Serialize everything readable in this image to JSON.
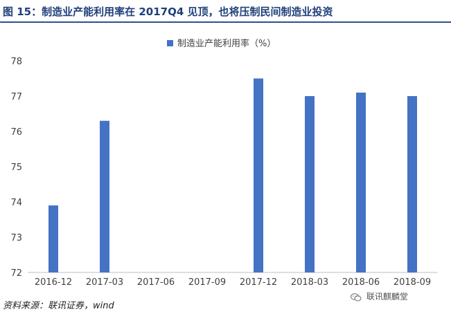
{
  "figure": {
    "title": "图 15：制造业产能利用率在 2017Q4 见顶，也将压制民间制造业投资",
    "source": "资料来源：联讯证券，wind",
    "watermark": "联讯麒麟堂",
    "watermark_icon": "wechat-icon"
  },
  "chart_data": {
    "type": "bar",
    "title": "",
    "xlabel": "",
    "ylabel": "",
    "categories": [
      "2016-12",
      "2017-03",
      "2017-06",
      "2017-09",
      "2017-12",
      "2018-03",
      "2018-06",
      "2018-09"
    ],
    "series": [
      {
        "name": "制造业产能利用率（%）",
        "values": [
          73.9,
          76.3,
          null,
          null,
          77.5,
          77.0,
          77.1,
          77.0
        ],
        "color": "#4472c4"
      }
    ],
    "ylim": [
      72,
      78
    ],
    "yticks": [
      72,
      73,
      74,
      75,
      76,
      77,
      78
    ],
    "grid": false,
    "legend": "top-center"
  }
}
